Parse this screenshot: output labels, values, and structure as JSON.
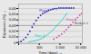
{
  "chart_data": {
    "type": "scatter",
    "xlabel": "Time (days)",
    "ylabel": "Expansion (%)",
    "log": "x",
    "grid": true,
    "xlim": [
      10,
      12000
    ],
    "ylim": [
      -0.002,
      0.068
    ],
    "xticks": [
      {
        "value": 10,
        "label": null
      },
      100,
      {
        "value": 1000,
        "label": "1 000"
      },
      {
        "value": 10000,
        "label": "10 000"
      }
    ],
    "yticks": [
      0,
      {
        "value": 0.01,
        "label": "0,01"
      },
      {
        "value": 0.02,
        "label": "0,02"
      },
      {
        "value": 0.03,
        "label": "0,03"
      },
      {
        "value": 0.04,
        "label": "0,04"
      },
      {
        "value": 0.05,
        "label": "0,05"
      },
      {
        "value": 0.06,
        "label": "0,06"
      }
    ],
    "series": [
      {
        "type": "scatter",
        "marker": "dot",
        "color": "#2222bb",
        "x": [
          10,
          13,
          17,
          22,
          28,
          35,
          45,
          55,
          70,
          90,
          115,
          145,
          185,
          230,
          285,
          360,
          450,
          560,
          700,
          880,
          1100,
          1400,
          1750,
          2200,
          2800,
          3500,
          4500
        ],
        "values": [
          0.001,
          0.002,
          0.005,
          0.009,
          0.014,
          0.02,
          0.027,
          0.033,
          0.039,
          0.044,
          0.048,
          0.051,
          0.053,
          0.055,
          0.057,
          0.058,
          0.059,
          0.06,
          0.06,
          0.061,
          0.061,
          0.061,
          0.061,
          0.061,
          0.061,
          0.061,
          0.061
        ]
      },
      {
        "type": "scatter",
        "marker": "dot",
        "color": "#cc44aa",
        "x": [
          500,
          700,
          900,
          1200,
          1600,
          2000,
          2600,
          3300,
          4200,
          5500,
          7000,
          9000,
          11000
        ],
        "values": [
          0.006,
          0.009,
          0.012,
          0.015,
          0.019,
          0.023,
          0.027,
          0.031,
          0.036,
          0.04,
          0.044,
          0.048,
          0.051
        ]
      },
      {
        "type": "line",
        "line_style": "solid",
        "color": "#00cccc",
        "x": [
          30,
          60,
          100,
          160,
          250,
          400,
          600,
          900,
          1400,
          2200
        ],
        "values": [
          0.001,
          0.003,
          0.005,
          0.009,
          0.014,
          0.02,
          0.027,
          0.034,
          0.042,
          0.052
        ]
      }
    ],
    "hlines": [
      {
        "y": 0.03,
        "color": "#888888"
      }
    ],
    "annotations": [
      {
        "text": "Part 1",
        "x": 100,
        "y": 0.054,
        "color": "#2222bb"
      },
      {
        "text": "Part 2",
        "x": 2000,
        "y": 0.038,
        "color": "#cc44aa"
      },
      {
        "text": "Part 3",
        "x": 60,
        "y": 0.01,
        "color": "#00cccc"
      },
      {
        "text": "Bridge n",
        "x": 5000,
        "y": 0.032,
        "color": "#555555"
      }
    ]
  }
}
